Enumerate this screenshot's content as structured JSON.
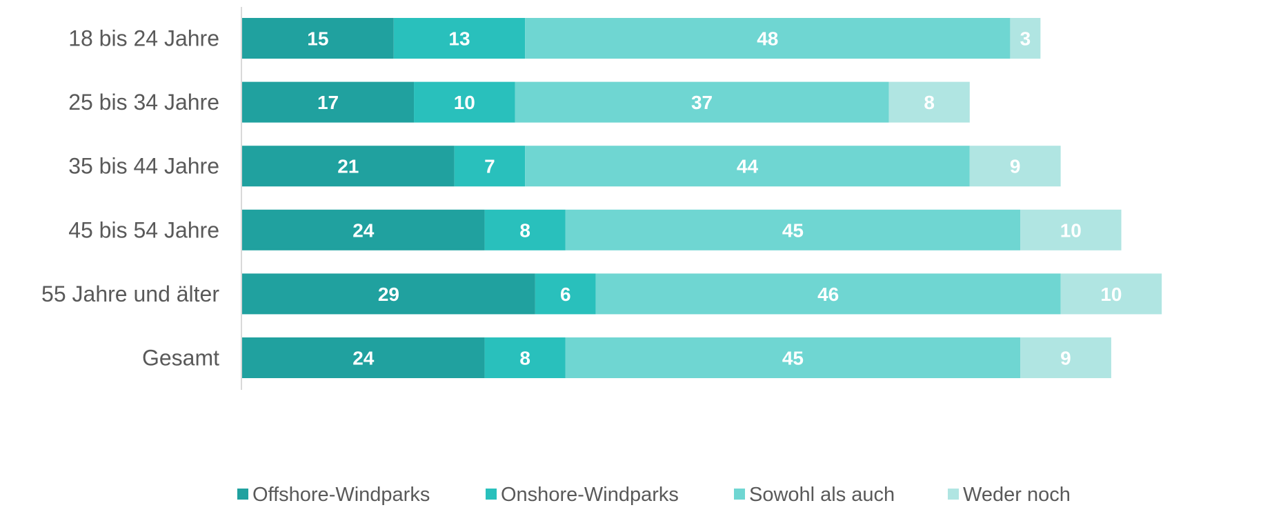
{
  "chart_data": {
    "type": "bar",
    "orientation": "horizontal",
    "stacked": true,
    "categories": [
      "18 bis 24 Jahre",
      "25 bis 34 Jahre",
      "35 bis 44 Jahre",
      "45 bis 54 Jahre",
      "55 Jahre und älter",
      "Gesamt"
    ],
    "series": [
      {
        "name": "Offshore-Windparks",
        "color": "#20a19f",
        "values": [
          15,
          17,
          21,
          24,
          29,
          24
        ]
      },
      {
        "name": "Onshore-Windparks",
        "color": "#29c0bc",
        "values": [
          13,
          10,
          7,
          8,
          6,
          8
        ]
      },
      {
        "name": "Sowohl als auch",
        "color": "#6fd6d2",
        "values": [
          48,
          37,
          44,
          45,
          46,
          45
        ]
      },
      {
        "name": "Weder noch",
        "color": "#b0e5e2",
        "values": [
          3,
          8,
          9,
          10,
          10,
          9
        ]
      }
    ],
    "legend_position": "bottom",
    "grid": false
  }
}
